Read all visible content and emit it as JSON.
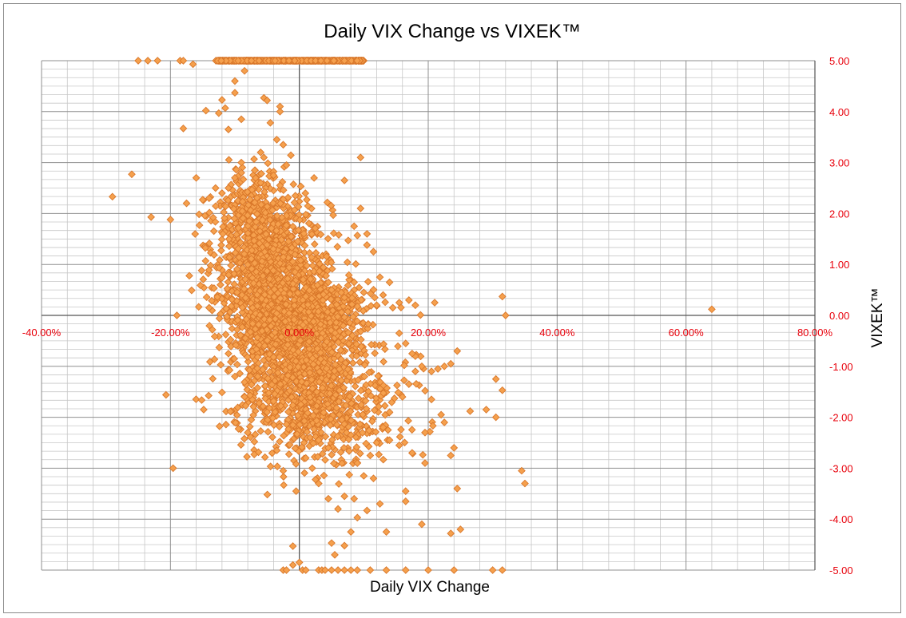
{
  "chart_data": {
    "type": "scatter",
    "title": "Daily VIX Change vs VIXEK™",
    "xlabel": "Daily VIX Change",
    "ylabel": "VIXEK™",
    "xlim": [
      -0.4,
      0.8
    ],
    "ylim": [
      -5,
      5
    ],
    "x_tick_labels": [
      "-40.00%",
      "-20.00%",
      "0.00%",
      "20.00%",
      "40.00%",
      "60.00%",
      "80.00%"
    ],
    "y_tick_labels": [
      "5.00",
      "4.00",
      "3.00",
      "2.00",
      "1.00",
      "0.00",
      "-1.00",
      "-2.00",
      "-3.00",
      "-4.00",
      "-5.00"
    ],
    "grid": true,
    "legend": "none",
    "marker": "diamond",
    "series": [
      {
        "color": "#f5a04d",
        "stroke": "#d9772a",
        "points": [
          [
            -0.29,
            2.33
          ],
          [
            -0.26,
            2.77
          ],
          [
            -0.25,
            5.0
          ],
          [
            -0.235,
            5.0
          ],
          [
            -0.22,
            5.0
          ],
          [
            -0.23,
            1.93
          ],
          [
            -0.2,
            1.88
          ],
          [
            -0.185,
            5.0
          ],
          [
            -0.18,
            5.0
          ],
          [
            -0.18,
            3.67
          ],
          [
            -0.175,
            2.2
          ],
          [
            -0.165,
            4.93
          ],
          [
            -0.19,
            0.0
          ],
          [
            -0.16,
            2.7
          ],
          [
            -0.155,
            1.77
          ],
          [
            -0.15,
            2.27
          ],
          [
            -0.145,
            4.02
          ],
          [
            -0.14,
            0.15
          ],
          [
            -0.135,
            -0.28
          ],
          [
            -0.125,
            3.97
          ],
          [
            -0.12,
            4.23
          ],
          [
            -0.115,
            4.07
          ],
          [
            -0.11,
            3.65
          ],
          [
            -0.1,
            4.6
          ],
          [
            -0.1,
            4.37
          ],
          [
            -0.095,
            5.0
          ],
          [
            -0.09,
            3.85
          ],
          [
            -0.085,
            4.8
          ],
          [
            -0.11,
            -0.75
          ],
          [
            -0.1,
            -1.2
          ],
          [
            -0.085,
            -1.6
          ],
          [
            -0.08,
            -2.3
          ],
          [
            -0.07,
            -2.73
          ],
          [
            -0.06,
            -2.27
          ],
          [
            -0.05,
            -1.9
          ],
          [
            -0.055,
            4.27
          ],
          [
            -0.05,
            4.22
          ],
          [
            -0.03,
            4.1
          ],
          [
            -0.03,
            4.0
          ],
          [
            -0.045,
            3.78
          ],
          [
            -0.06,
            3.2
          ],
          [
            -0.055,
            3.1
          ],
          [
            -0.035,
            3.45
          ],
          [
            -0.025,
            3.35
          ],
          [
            -0.02,
            2.95
          ],
          [
            -0.09,
            3.0
          ],
          [
            -0.09,
            2.8
          ],
          [
            -0.1,
            2.7
          ],
          [
            -0.11,
            2.5
          ],
          [
            -0.12,
            2.4
          ],
          [
            -0.13,
            2.5
          ],
          [
            -0.14,
            2.3
          ],
          [
            -0.06,
            2.6
          ],
          [
            -0.04,
            2.75
          ],
          [
            -0.03,
            2.55
          ],
          [
            -0.025,
            -5.0
          ],
          [
            -0.02,
            -5.0
          ],
          [
            -0.01,
            -4.9
          ],
          [
            0.0,
            -4.85
          ],
          [
            0.005,
            -5.0
          ],
          [
            0.01,
            -5.0
          ],
          [
            0.03,
            -5.0
          ],
          [
            0.035,
            -5.0
          ],
          [
            0.04,
            -5.0
          ],
          [
            0.05,
            -5.0
          ],
          [
            0.06,
            -5.0
          ],
          [
            0.07,
            -5.0
          ],
          [
            0.08,
            -5.0
          ],
          [
            0.09,
            -5.0
          ],
          [
            0.11,
            -5.0
          ],
          [
            0.135,
            -5.0
          ],
          [
            0.165,
            -5.0
          ],
          [
            0.2,
            -5.0
          ],
          [
            0.24,
            -5.0
          ],
          [
            0.3,
            -5.0
          ],
          [
            0.315,
            -5.0
          ],
          [
            -0.01,
            -4.53
          ],
          [
            0.05,
            -4.47
          ],
          [
            0.07,
            -4.52
          ],
          [
            0.055,
            -4.7
          ],
          [
            0.08,
            -4.25
          ],
          [
            0.09,
            -3.97
          ],
          [
            0.105,
            -3.83
          ],
          [
            0.135,
            -4.25
          ],
          [
            0.19,
            -4.1
          ],
          [
            0.235,
            -4.28
          ],
          [
            0.25,
            -4.2
          ],
          [
            0.245,
            -3.4
          ],
          [
            0.195,
            -2.9
          ],
          [
            0.235,
            -2.75
          ],
          [
            0.24,
            -2.6
          ],
          [
            0.29,
            -1.85
          ],
          [
            0.305,
            -1.25
          ],
          [
            0.315,
            -1.47
          ],
          [
            0.305,
            -2.0
          ],
          [
            0.22,
            -1.95
          ],
          [
            0.225,
            -2.1
          ],
          [
            0.205,
            -1.65
          ],
          [
            0.265,
            -1.88
          ],
          [
            0.245,
            -0.7
          ],
          [
            0.235,
            -0.95
          ],
          [
            0.225,
            -1.0
          ],
          [
            0.215,
            -1.05
          ],
          [
            0.205,
            -1.1
          ],
          [
            0.19,
            -1.0
          ],
          [
            0.18,
            -0.8
          ],
          [
            0.18,
            0.2
          ],
          [
            0.17,
            0.3
          ],
          [
            0.155,
            0.25
          ],
          [
            0.145,
            0.15
          ],
          [
            0.21,
            0.25
          ],
          [
            0.315,
            0.37
          ],
          [
            0.32,
            0.0
          ],
          [
            0.345,
            -3.05
          ],
          [
            0.35,
            -3.3
          ],
          [
            0.64,
            0.12
          ],
          [
            0.095,
            3.1
          ],
          [
            0.095,
            2.1
          ],
          [
            0.07,
            2.65
          ],
          [
            0.085,
            1.75
          ],
          [
            0.105,
            1.6
          ],
          [
            0.115,
            1.25
          ],
          [
            0.14,
            0.65
          ],
          [
            0.125,
            0.75
          ],
          [
            0.13,
            0.4
          ],
          [
            0.12,
            0.2
          ],
          [
            0.155,
            -0.35
          ],
          [
            0.165,
            -0.55
          ],
          [
            0.175,
            -0.75
          ],
          [
            0.18,
            -1.1
          ],
          [
            0.17,
            -1.35
          ],
          [
            0.16,
            -1.6
          ],
          [
            0.14,
            -1.9
          ],
          [
            0.13,
            -2.2
          ],
          [
            0.12,
            -2.5
          ],
          [
            0.11,
            -2.75
          ],
          [
            0.1,
            -3.15
          ],
          [
            0.115,
            -3.2
          ],
          [
            0.125,
            -3.7
          ],
          [
            0.085,
            -3.6
          ],
          [
            0.07,
            -3.55
          ],
          [
            0.06,
            -3.8
          ],
          [
            0.045,
            -3.6
          ],
          [
            0.03,
            -3.3
          ],
          [
            0.02,
            -3.0
          ],
          [
            0.01,
            -2.8
          ],
          [
            -0.005,
            -3.45
          ],
          [
            -0.025,
            -3.05
          ],
          [
            -0.035,
            -2.65
          ],
          [
            0.165,
            -3.45
          ],
          [
            0.165,
            -3.65
          ],
          [
            0.195,
            -2.3
          ],
          [
            0.175,
            -2.7
          ],
          [
            0.155,
            -2.55
          ],
          [
            0.14,
            -2.45
          ],
          [
            0.08,
            -2.35
          ],
          [
            0.09,
            -2.9
          ],
          [
            0.045,
            -2.6
          ],
          [
            0.03,
            -2.45
          ],
          [
            0.05,
            0.5
          ],
          [
            0.07,
            0.35
          ],
          [
            0.085,
            0.65
          ],
          [
            0.1,
            0.45
          ]
        ],
        "dense_regions": [
          {
            "x_mean": -0.04,
            "x_sd": 0.045,
            "y_mean": 0.8,
            "y_sd": 0.75,
            "count": 1100
          },
          {
            "x_mean": 0.0,
            "x_sd": 0.05,
            "y_mean": -0.9,
            "y_sd": 0.75,
            "count": 1100
          },
          {
            "x_mean": -0.07,
            "x_sd": 0.03,
            "y_mean": 1.9,
            "y_sd": 0.45,
            "count": 250
          },
          {
            "x_mean": 0.05,
            "x_sd": 0.06,
            "y_mean": -1.9,
            "y_sd": 0.55,
            "count": 350
          },
          {
            "x_mean": 0.02,
            "x_sd": 0.045,
            "y_mean": 0.25,
            "y_sd": 0.18,
            "count": 220
          },
          {
            "x_mean": 0.0,
            "x_sd": 0.045,
            "y_mean": -0.15,
            "y_sd": 0.15,
            "count": 220
          },
          {
            "x_min": -0.13,
            "x_max": 0.1,
            "y": 5.0,
            "count": 600
          }
        ]
      }
    ]
  }
}
